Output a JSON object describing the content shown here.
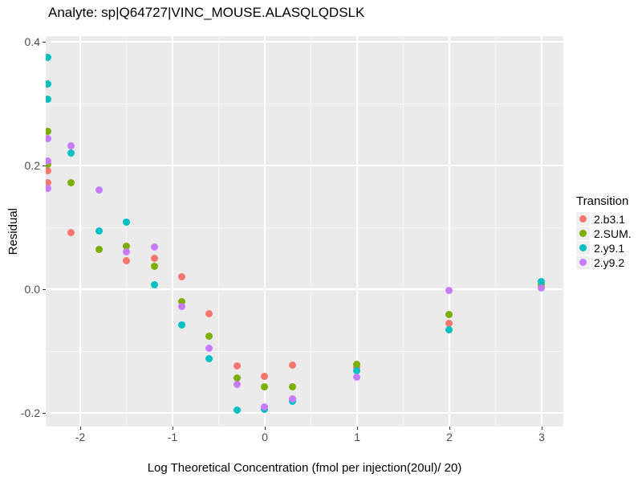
{
  "chart_data": {
    "type": "scatter",
    "title": "Analyte: sp|Q64727|VINC_MOUSE.ALASQLQDSLK",
    "xlabel": "Log Theoretical Concentration (fmol per injection(20ul)/ 20)",
    "ylabel": "Residual",
    "legend_title": "Transition",
    "legend_position": "right",
    "grid": "major-and-minor-white-on-gray",
    "panel_bg": "#EBEBEB",
    "legend_key_bg": "#EFEFEF",
    "tick_label_color": "#4D4D4D",
    "xlim": [
      -2.374,
      3.235
    ],
    "ylim": [
      -0.2218,
      0.4096
    ],
    "x_ticks": [
      {
        "v": -2,
        "label": "-2"
      },
      {
        "v": -1,
        "label": "-1"
      },
      {
        "v": 0,
        "label": "0"
      },
      {
        "v": 1,
        "label": "1"
      },
      {
        "v": 2,
        "label": "2"
      },
      {
        "v": 3,
        "label": "3"
      }
    ],
    "y_ticks": [
      {
        "v": 0.4,
        "label": "0.4"
      },
      {
        "v": 0.2,
        "label": "0.2"
      },
      {
        "v": 0.0,
        "label": "0.0"
      },
      {
        "v": -0.2,
        "label": "-0.2"
      }
    ],
    "x_minor_gridlines": [
      -1.5,
      -0.5,
      0.5,
      1.5,
      2.5
    ],
    "y_minor_gridlines": [
      0.3,
      0.1,
      -0.1
    ],
    "series": [
      {
        "name": "2.b3.1",
        "color": "#F8766D",
        "points": [
          [
            -2.35,
            0.192
          ],
          [
            -2.35,
            0.173
          ],
          [
            -2.1,
            0.092
          ],
          [
            -1.5,
            0.046
          ],
          [
            -1.2,
            0.051
          ],
          [
            -0.9,
            0.021
          ],
          [
            -0.6,
            -0.039
          ],
          [
            -0.3,
            -0.124
          ],
          [
            0,
            -0.14
          ],
          [
            0.3,
            -0.123
          ],
          [
            1,
            -0.126
          ],
          [
            2,
            -0.055
          ],
          [
            3,
            0.005
          ]
        ]
      },
      {
        "name": "2.SUM.",
        "color": "#7CAE00",
        "points": [
          [
            -2.35,
            0.256
          ],
          [
            -2.35,
            0.202
          ],
          [
            -2.1,
            0.172
          ],
          [
            -1.8,
            0.065
          ],
          [
            -1.5,
            0.07
          ],
          [
            -1.2,
            0.038
          ],
          [
            -0.9,
            -0.02
          ],
          [
            -0.6,
            -0.076
          ],
          [
            -0.3,
            -0.143
          ],
          [
            0,
            -0.158
          ],
          [
            0.3,
            -0.158
          ],
          [
            1,
            -0.121
          ],
          [
            2,
            -0.04
          ],
          [
            3,
            0.008
          ]
        ]
      },
      {
        "name": "2.y9.1",
        "color": "#00BFC4",
        "points": [
          [
            -2.35,
            0.375
          ],
          [
            -2.35,
            0.332
          ],
          [
            -2.35,
            0.308
          ],
          [
            -2.1,
            0.221
          ],
          [
            -1.8,
            0.095
          ],
          [
            -1.5,
            0.109
          ],
          [
            -1.2,
            0.008
          ],
          [
            -0.9,
            -0.057
          ],
          [
            -0.6,
            -0.112
          ],
          [
            -0.3,
            -0.195
          ],
          [
            0,
            -0.194
          ],
          [
            0.3,
            -0.181
          ],
          [
            1,
            -0.132
          ],
          [
            2,
            -0.065
          ],
          [
            3,
            0.013
          ]
        ]
      },
      {
        "name": "2.y9.2",
        "color": "#C77CFF",
        "points": [
          [
            -2.35,
            0.244
          ],
          [
            -2.35,
            0.208
          ],
          [
            -2.35,
            0.163
          ],
          [
            -2.1,
            0.232
          ],
          [
            -1.8,
            0.161
          ],
          [
            -1.5,
            0.061
          ],
          [
            -1.2,
            0.068
          ],
          [
            -0.9,
            -0.028
          ],
          [
            -0.6,
            -0.095
          ],
          [
            -0.3,
            -0.154
          ],
          [
            0,
            -0.19
          ],
          [
            0.3,
            -0.177
          ],
          [
            1,
            -0.142
          ],
          [
            2,
            -0.002
          ],
          [
            3,
            0.002
          ]
        ]
      }
    ]
  }
}
